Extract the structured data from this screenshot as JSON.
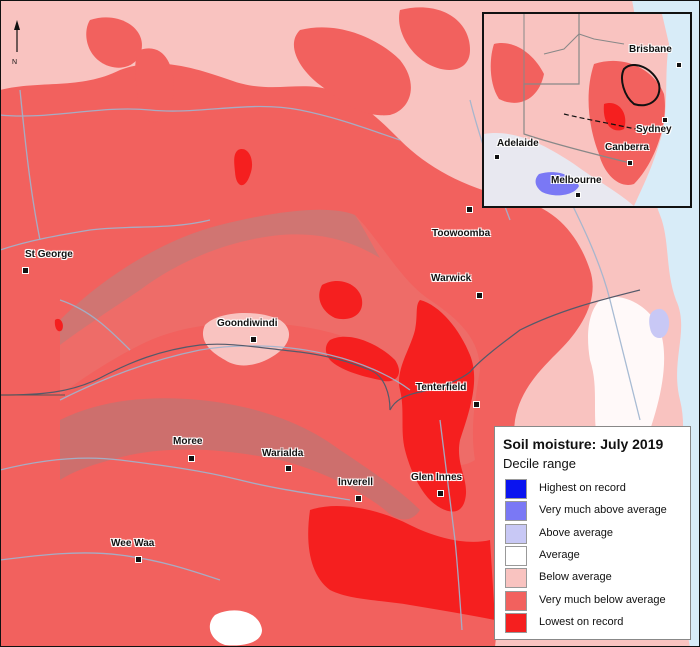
{
  "legend": {
    "title": "Soil moisture: July 2019",
    "subtitle": "Decile range",
    "items": [
      {
        "label": "Highest on record",
        "color": "#0a14f0"
      },
      {
        "label": "Very much above average",
        "color": "#7a78f5"
      },
      {
        "label": "Above average",
        "color": "#c8c8f5"
      },
      {
        "label": "Average",
        "color": "#ffffff"
      },
      {
        "label": "Below average",
        "color": "#f9c3c0"
      },
      {
        "label": "Very much below average",
        "color": "#f2615e"
      },
      {
        "label": "Lowest on record",
        "color": "#f51f1f"
      }
    ]
  },
  "north_arrow": {
    "label": "N"
  },
  "towns": [
    {
      "name": "Toowoomba"
    },
    {
      "name": "St George"
    },
    {
      "name": "Warwick"
    },
    {
      "name": "Goondiwindi"
    },
    {
      "name": "Tenterfield"
    },
    {
      "name": "Moree"
    },
    {
      "name": "Warialda"
    },
    {
      "name": "Inverell"
    },
    {
      "name": "Glen Innes"
    },
    {
      "name": "Wee Waa"
    }
  ],
  "inset_cities": [
    {
      "name": "Brisbane"
    },
    {
      "name": "Adelaide"
    },
    {
      "name": "Sydney"
    },
    {
      "name": "Canberra"
    },
    {
      "name": "Melbourne"
    }
  ],
  "colors": {
    "ocean": "#d8ecf8",
    "river": "#9fb5cf",
    "border": "#666666"
  }
}
